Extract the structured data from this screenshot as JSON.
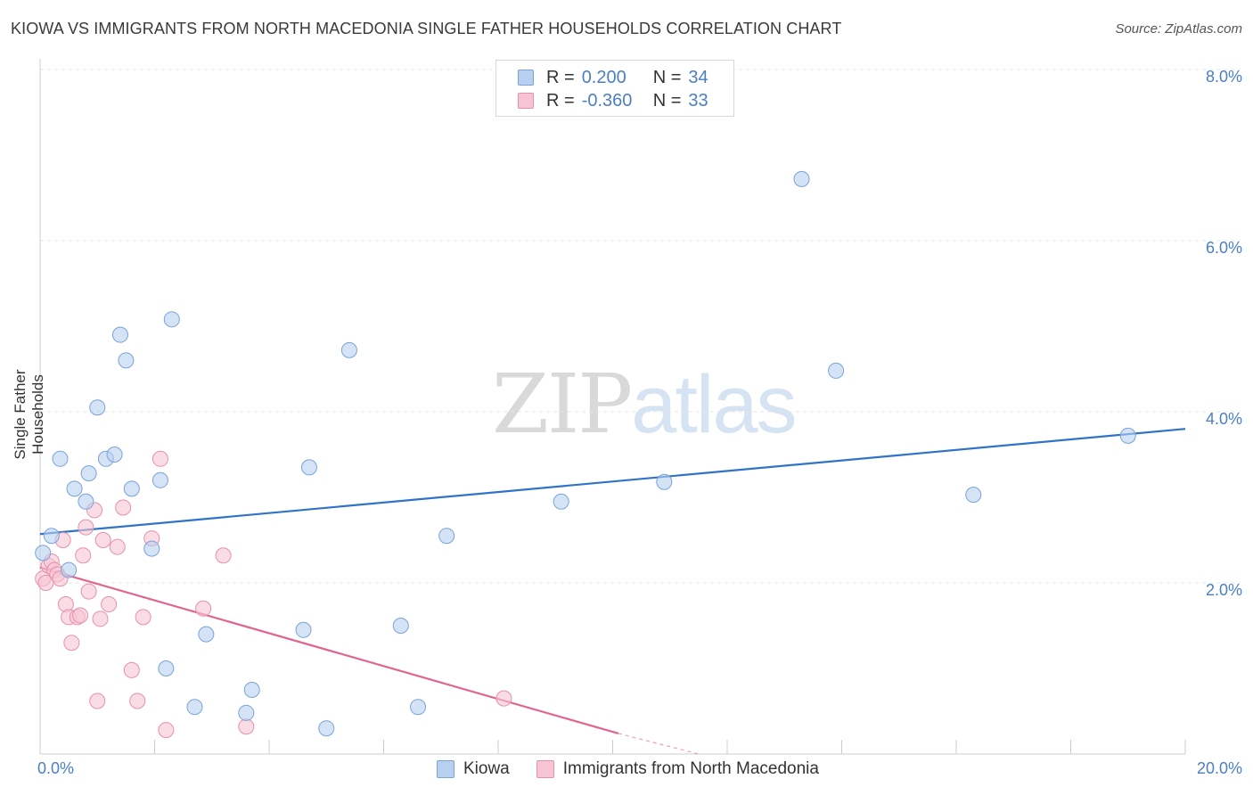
{
  "header": {
    "title": "KIOWA VS IMMIGRANTS FROM NORTH MACEDONIA SINGLE FATHER HOUSEHOLDS CORRELATION CHART",
    "source": "Source: ZipAtlas.com"
  },
  "watermark": {
    "zip": "ZIP",
    "atlas": "atlas"
  },
  "legend_top": {
    "rows": [
      {
        "r_label": "R =",
        "r_value": "0.200",
        "n_label": "N =",
        "n_value": "34"
      },
      {
        "r_label": "R =",
        "r_value": "-0.360",
        "n_label": "N =",
        "n_value": "33"
      }
    ]
  },
  "colors": {
    "kiowa_fill": "#b8d0f0",
    "kiowa_stroke": "#7aa3d8",
    "kiowa_line": "#2f74c8",
    "mac_fill": "#f7c4d3",
    "mac_stroke": "#e890ab",
    "mac_line": "#e06690",
    "grid": "#e4e4e4",
    "axis_text": "#4a7fc6"
  },
  "chart_data": {
    "type": "scatter",
    "title": "KIOWA VS IMMIGRANTS FROM NORTH MACEDONIA SINGLE FATHER HOUSEHOLDS CORRELATION CHART",
    "xlabel": "",
    "ylabel": "Single Father Households",
    "xlim": [
      0,
      20
    ],
    "ylim": [
      0,
      8.3
    ],
    "x_tick_labels": [
      "0.0%",
      "20.0%"
    ],
    "y_ticks": [
      2,
      4,
      6,
      8
    ],
    "y_tick_labels": [
      "2.0%",
      "4.0%",
      "6.0%",
      "8.0%"
    ],
    "grid": true,
    "series": [
      {
        "name": "Kiowa",
        "r": 0.2,
        "n": 34,
        "points": [
          [
            0.05,
            2.35
          ],
          [
            0.2,
            2.55
          ],
          [
            0.35,
            3.45
          ],
          [
            0.5,
            2.15
          ],
          [
            0.6,
            3.1
          ],
          [
            0.8,
            2.95
          ],
          [
            0.85,
            3.28
          ],
          [
            1.0,
            4.05
          ],
          [
            1.15,
            3.45
          ],
          [
            1.3,
            3.5
          ],
          [
            1.4,
            4.9
          ],
          [
            1.5,
            4.6
          ],
          [
            1.6,
            3.1
          ],
          [
            1.95,
            2.4
          ],
          [
            2.1,
            3.2
          ],
          [
            2.2,
            1.0
          ],
          [
            2.3,
            5.08
          ],
          [
            2.7,
            0.55
          ],
          [
            2.9,
            1.4
          ],
          [
            3.6,
            0.48
          ],
          [
            3.7,
            0.75
          ],
          [
            4.6,
            1.45
          ],
          [
            4.7,
            3.35
          ],
          [
            5.0,
            0.3
          ],
          [
            5.4,
            4.72
          ],
          [
            6.3,
            1.5
          ],
          [
            6.6,
            0.55
          ],
          [
            7.1,
            2.55
          ],
          [
            9.1,
            2.95
          ],
          [
            10.9,
            3.18
          ],
          [
            13.3,
            6.72
          ],
          [
            13.9,
            4.48
          ],
          [
            16.3,
            3.03
          ],
          [
            19.0,
            3.72
          ]
        ],
        "trend": {
          "x": [
            0,
            20
          ],
          "y": [
            2.57,
            3.8
          ]
        }
      },
      {
        "name": "Immigrants from North Macedonia",
        "r": -0.36,
        "n": 33,
        "points": [
          [
            0.05,
            2.05
          ],
          [
            0.1,
            2.0
          ],
          [
            0.15,
            2.2
          ],
          [
            0.2,
            2.25
          ],
          [
            0.25,
            2.15
          ],
          [
            0.3,
            2.1
          ],
          [
            0.35,
            2.05
          ],
          [
            0.4,
            2.5
          ],
          [
            0.45,
            1.75
          ],
          [
            0.5,
            1.6
          ],
          [
            0.55,
            1.3
          ],
          [
            0.65,
            1.6
          ],
          [
            0.7,
            1.62
          ],
          [
            0.75,
            2.32
          ],
          [
            0.8,
            2.65
          ],
          [
            0.85,
            1.9
          ],
          [
            0.95,
            2.85
          ],
          [
            1.0,
            0.62
          ],
          [
            1.05,
            1.58
          ],
          [
            1.1,
            2.5
          ],
          [
            1.2,
            1.75
          ],
          [
            1.35,
            2.42
          ],
          [
            1.45,
            2.88
          ],
          [
            1.6,
            0.98
          ],
          [
            1.7,
            0.62
          ],
          [
            1.8,
            1.6
          ],
          [
            1.95,
            2.52
          ],
          [
            2.1,
            3.45
          ],
          [
            2.2,
            0.28
          ],
          [
            2.85,
            1.7
          ],
          [
            3.2,
            2.32
          ],
          [
            3.6,
            0.32
          ],
          [
            8.1,
            0.65
          ]
        ],
        "trend": {
          "x": [
            0,
            10.1
          ],
          "y": [
            2.18,
            0.24
          ]
        },
        "trend_dashed": {
          "x": [
            10.1,
            11.5
          ],
          "y": [
            0.24,
            0.0
          ]
        }
      }
    ]
  },
  "legend_bottom": {
    "items": [
      "Kiowa",
      "Immigrants from North Macedonia"
    ]
  }
}
